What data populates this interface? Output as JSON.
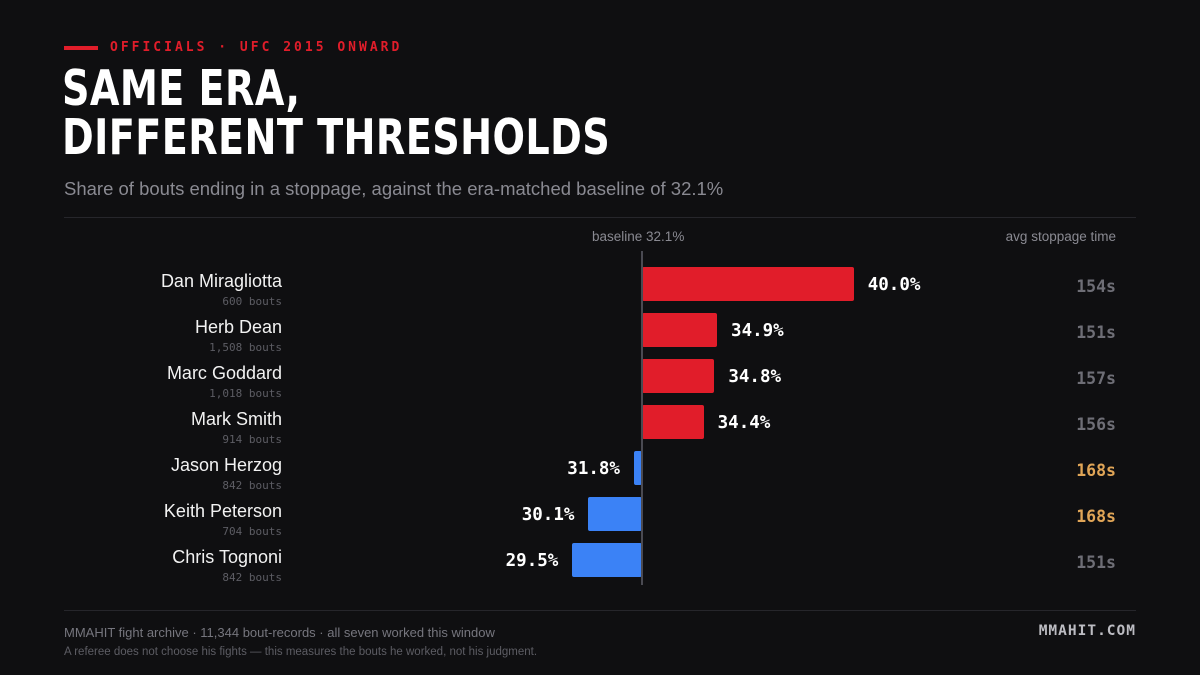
{
  "eyebrow": "OFFICIALS · UFC 2015 ONWARD",
  "title_line1": "SAME ERA,",
  "title_line2": "DIFFERENT THRESHOLDS",
  "subtitle": "Share of bouts ending in a stoppage, against the era-matched baseline of 32.1%",
  "baseline_label": "baseline 32.1%",
  "time_header": "avg stoppage time",
  "footer_line1": "MMAHIT fight archive · 11,344 bout-records · all seven worked this window",
  "footer_line2": "A referee does not choose his fights — this measures the bouts he worked, not his judgment.",
  "brand": "MMAHIT.COM",
  "colors": {
    "above": "#e11d2a",
    "below": "#3b82f6",
    "time_normal": "#6e6e76",
    "time_high": "#e0a557"
  },
  "chart_data": {
    "type": "bar",
    "orientation": "horizontal",
    "baseline": 32.1,
    "unit": "%",
    "rows": [
      {
        "name": "Dan Miragliotta",
        "bouts": "600 bouts",
        "value": 40.0,
        "label": "40.0%",
        "time": "154s",
        "time_highlight": false
      },
      {
        "name": "Herb Dean",
        "bouts": "1,508 bouts",
        "value": 34.9,
        "label": "34.9%",
        "time": "151s",
        "time_highlight": false
      },
      {
        "name": "Marc Goddard",
        "bouts": "1,018 bouts",
        "value": 34.8,
        "label": "34.8%",
        "time": "157s",
        "time_highlight": false
      },
      {
        "name": "Mark Smith",
        "bouts": "914 bouts",
        "value": 34.4,
        "label": "34.4%",
        "time": "156s",
        "time_highlight": false
      },
      {
        "name": "Jason Herzog",
        "bouts": "842 bouts",
        "value": 31.8,
        "label": "31.8%",
        "time": "168s",
        "time_highlight": true
      },
      {
        "name": "Keith Peterson",
        "bouts": "704 bouts",
        "value": 30.1,
        "label": "30.1%",
        "time": "168s",
        "time_highlight": true
      },
      {
        "name": "Chris Tognoni",
        "bouts": "842 bouts",
        "value": 29.5,
        "label": "29.5%",
        "time": "151s",
        "time_highlight": false
      }
    ]
  }
}
